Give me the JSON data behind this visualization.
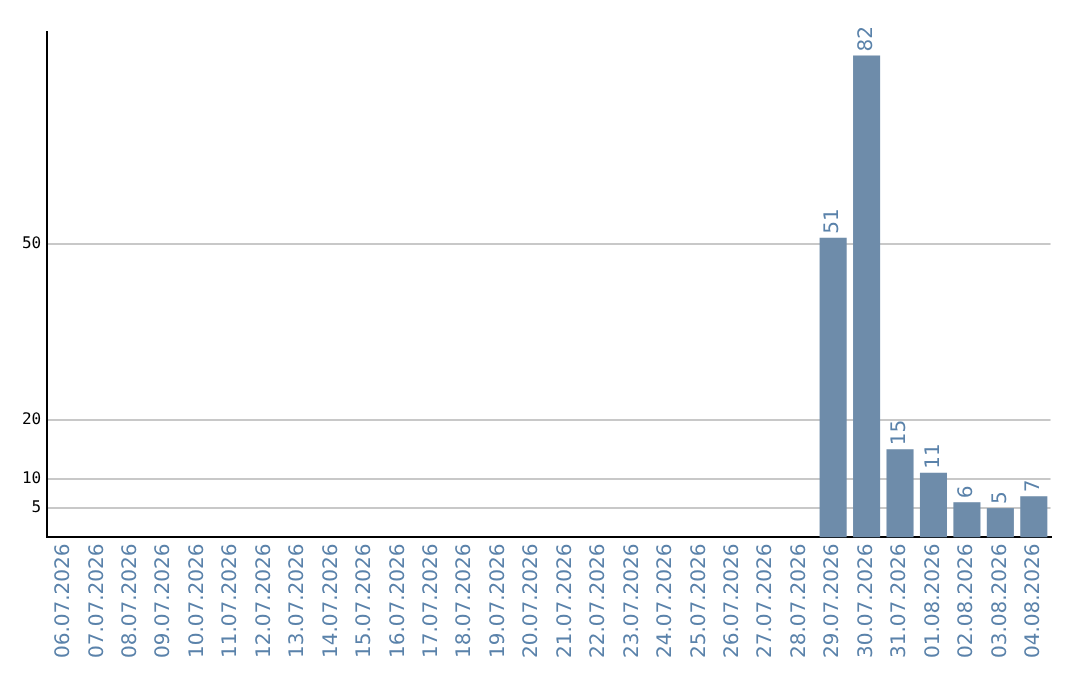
{
  "chart_data": {
    "type": "bar",
    "categories": [
      "06.07.2026",
      "07.07.2026",
      "08.07.2026",
      "09.07.2026",
      "10.07.2026",
      "11.07.2026",
      "12.07.2026",
      "13.07.2026",
      "14.07.2026",
      "15.07.2026",
      "16.07.2026",
      "17.07.2026",
      "18.07.2026",
      "19.07.2026",
      "20.07.2026",
      "21.07.2026",
      "22.07.2026",
      "23.07.2026",
      "24.07.2026",
      "25.07.2026",
      "26.07.2026",
      "27.07.2026",
      "28.07.2026",
      "29.07.2026",
      "30.07.2026",
      "31.07.2026",
      "01.08.2026",
      "02.08.2026",
      "03.08.2026",
      "04.08.2026"
    ],
    "values": [
      0,
      0,
      0,
      0,
      0,
      0,
      0,
      0,
      0,
      0,
      0,
      0,
      0,
      0,
      0,
      0,
      0,
      0,
      0,
      0,
      0,
      0,
      0,
      51,
      82,
      15,
      11,
      6,
      5,
      7
    ],
    "value_labels": [
      null,
      null,
      null,
      null,
      null,
      null,
      null,
      null,
      null,
      null,
      null,
      null,
      null,
      null,
      null,
      null,
      null,
      null,
      null,
      null,
      null,
      null,
      null,
      "51",
      "82",
      "15",
      "11",
      "6",
      "5",
      "7"
    ],
    "color": "#6e8caa",
    "ylim": [
      0,
      86
    ],
    "yticks": [
      5,
      10,
      20,
      50
    ],
    "grid": "y",
    "legend": false
  }
}
